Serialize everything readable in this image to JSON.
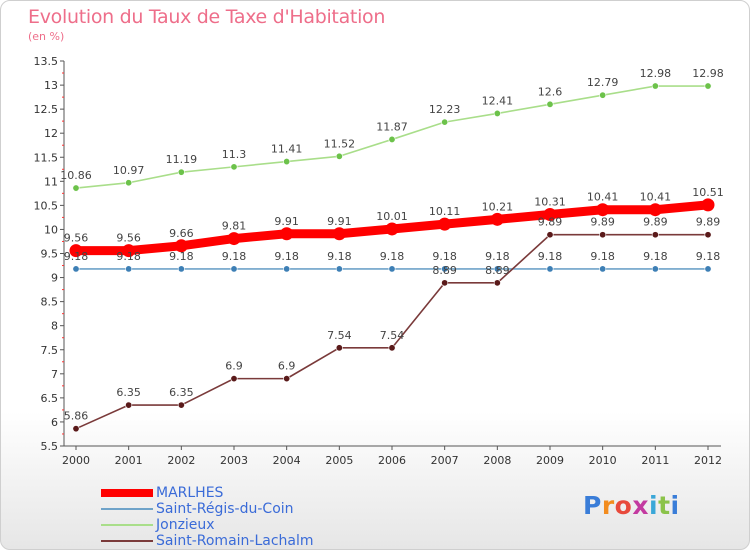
{
  "header": {
    "title": "Evolution du Taux de Taxe d'Habitation",
    "subtitle": "(en %)"
  },
  "logo": {
    "text": "Proxiti",
    "colors": [
      "#3a7dd8",
      "#f28c1e",
      "#e84a3c",
      "#c33aa0",
      "#3aa7d8",
      "#8bc34a",
      "#3a7dd8"
    ]
  },
  "chart_data": {
    "type": "line",
    "x": [
      2000,
      2001,
      2002,
      2003,
      2004,
      2005,
      2006,
      2007,
      2008,
      2009,
      2010,
      2011,
      2012
    ],
    "ylim": [
      5.5,
      13.5
    ],
    "yticks": [
      "5.5",
      "6",
      "6.5",
      "7",
      "7.5",
      "8",
      "8.5",
      "9",
      "9.5",
      "10",
      "10.5",
      "11",
      "11.5",
      "12",
      "12.5",
      "13",
      "13.5"
    ],
    "grid": false,
    "legend_placement": "bottom-left",
    "series": [
      {
        "name": "MARLHES",
        "color": "#ff0000",
        "marker_color": "#ff0000",
        "thick": true,
        "values": [
          9.56,
          9.56,
          9.66,
          9.81,
          9.91,
          9.91,
          10.01,
          10.11,
          10.21,
          10.31,
          10.41,
          10.41,
          10.51
        ],
        "labels": [
          "9.56",
          "9.56",
          "9.66",
          "9.81",
          "9.91",
          "9.91",
          "10.01",
          "10.11",
          "10.21",
          "10.31",
          "10.41",
          "10.41",
          "10.51"
        ]
      },
      {
        "name": "Saint-Régis-du-Coin",
        "color": "#6fa3c9",
        "marker_color": "#3d7fb5",
        "thick": false,
        "values": [
          9.18,
          9.18,
          9.18,
          9.18,
          9.18,
          9.18,
          9.18,
          9.18,
          9.18,
          9.18,
          9.18,
          9.18,
          9.18
        ],
        "labels": [
          "9.18",
          "9.18",
          "9.18",
          "9.18",
          "9.18",
          "9.18",
          "9.18",
          "9.18",
          "9.18",
          "9.18",
          "9.18",
          "9.18",
          "9.18"
        ]
      },
      {
        "name": "Jonzieux",
        "color": "#a9de8a",
        "marker_color": "#6cc24a",
        "thick": false,
        "values": [
          10.86,
          10.97,
          11.19,
          11.3,
          11.41,
          11.52,
          11.87,
          12.23,
          12.41,
          12.6,
          12.79,
          12.98,
          12.98
        ],
        "labels": [
          "10.86",
          "10.97",
          "11.19",
          "11.3",
          "11.41",
          "11.52",
          "11.87",
          "12.23",
          "12.41",
          "12.6",
          "12.79",
          "12.98",
          "12.98"
        ]
      },
      {
        "name": "Saint-Romain-Lachalm",
        "color": "#7a3a3a",
        "marker_color": "#5a1a1a",
        "thick": false,
        "values": [
          5.86,
          6.35,
          6.35,
          6.9,
          6.9,
          7.54,
          7.54,
          8.89,
          8.89,
          9.89,
          9.89,
          9.89,
          9.89
        ],
        "labels": [
          "5.86",
          "6.35",
          "6.35",
          "6.9",
          "6.9",
          "7.54",
          "7.54",
          "8.89",
          "8.89",
          "9.89",
          "9.89",
          "9.89",
          "9.89"
        ]
      }
    ]
  }
}
